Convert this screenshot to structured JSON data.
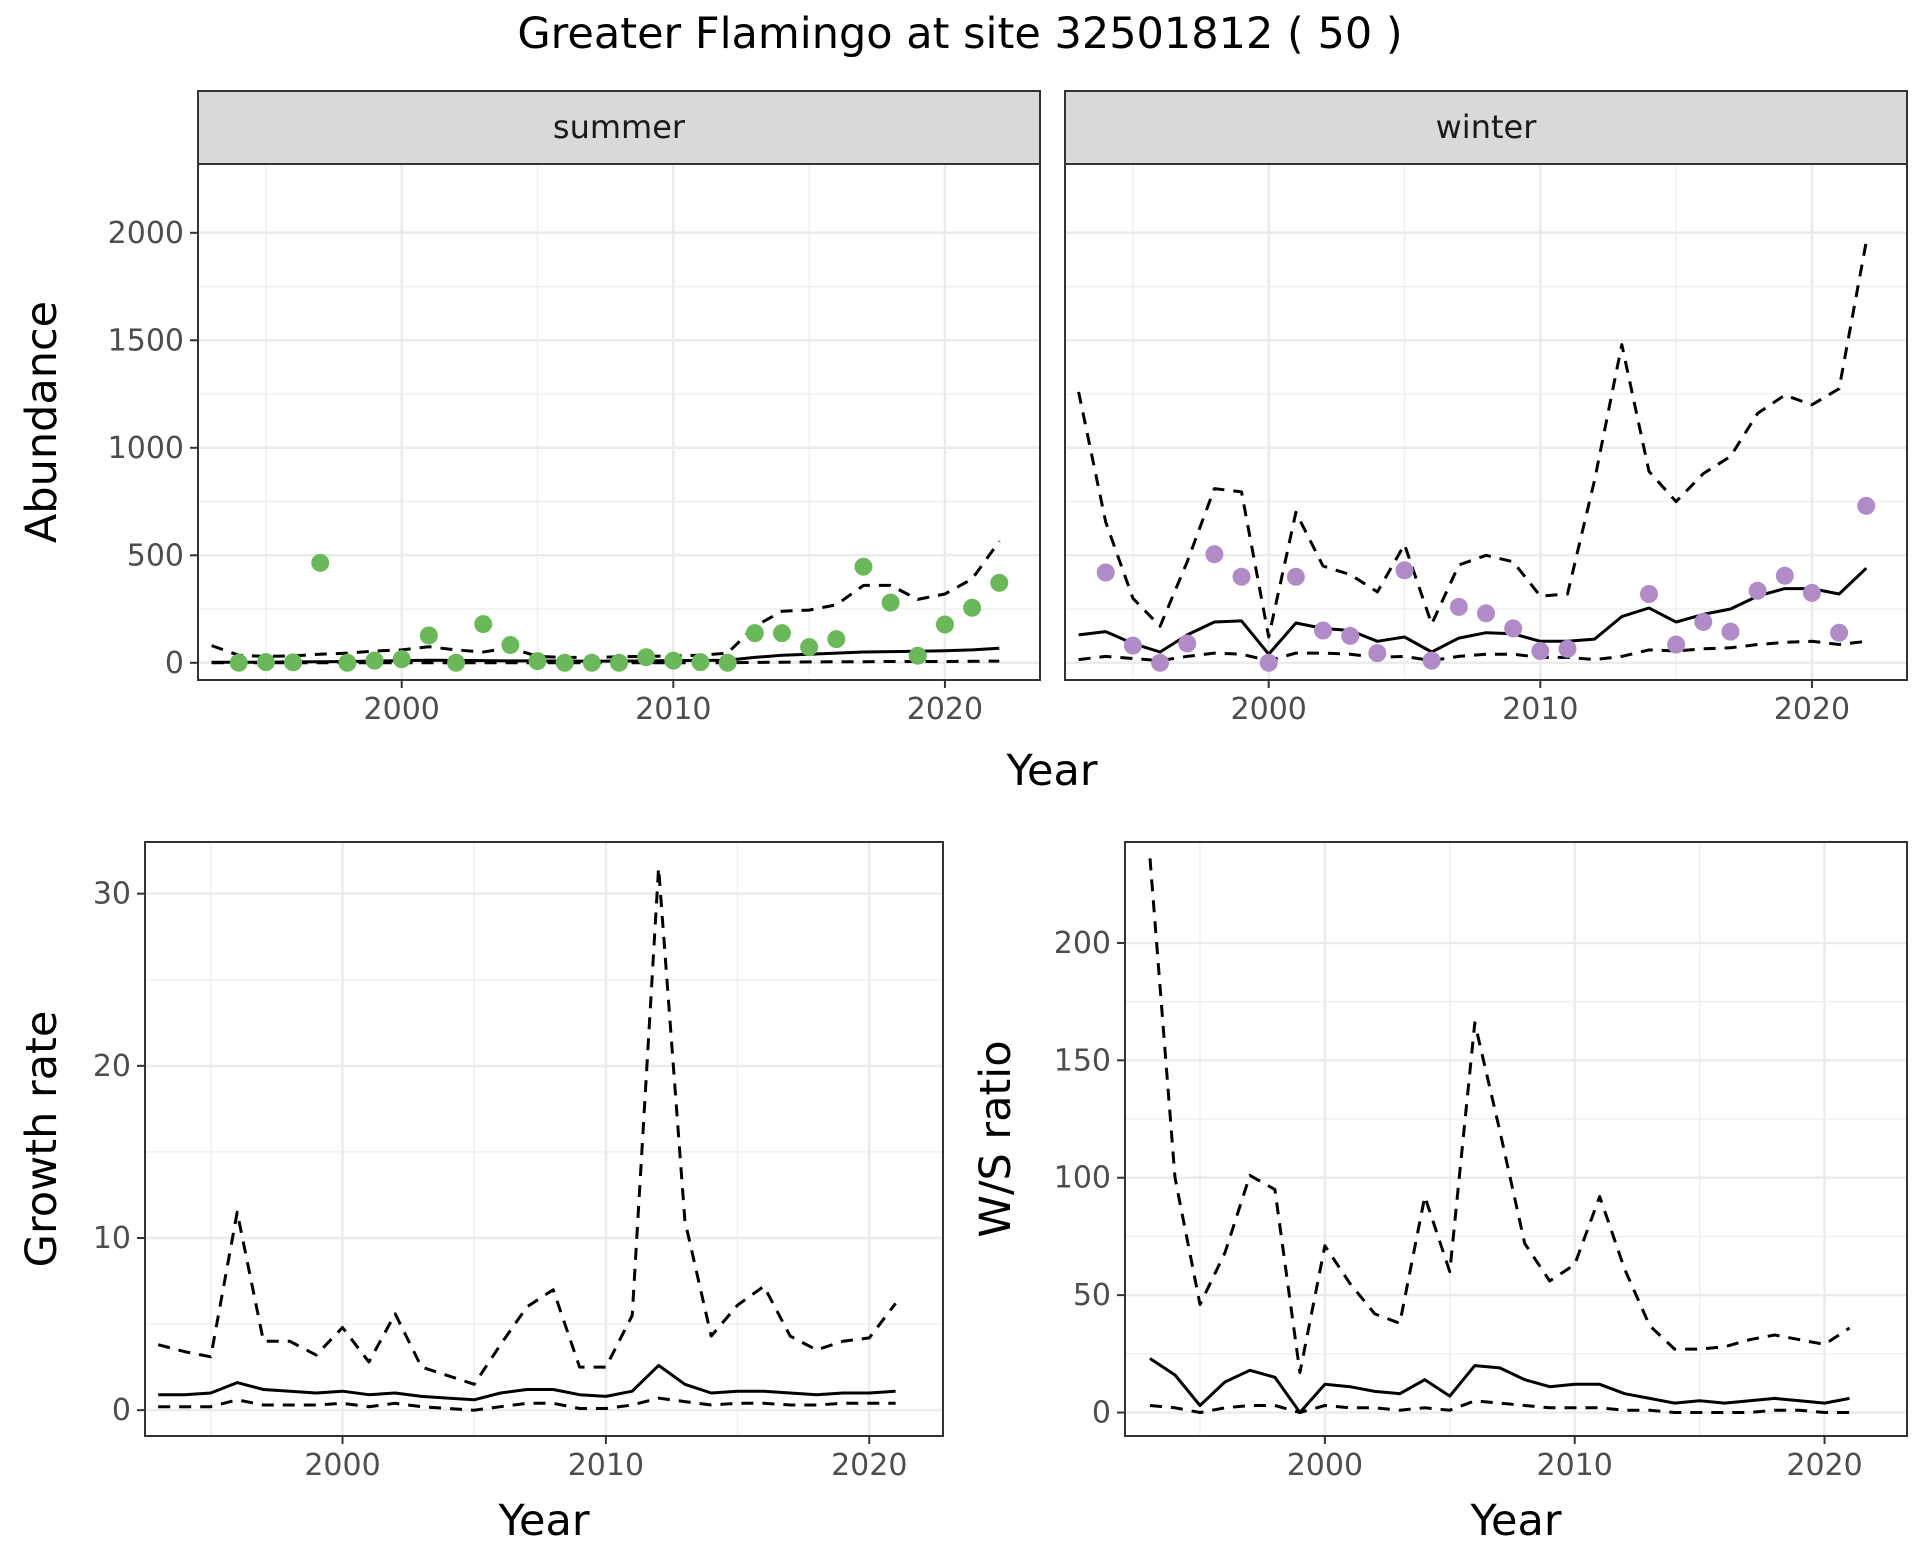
{
  "figure": {
    "title": "Greater Flamingo at site 32501812 ( 50 )"
  },
  "chart_data": [
    {
      "id": "abundance",
      "type": "line",
      "facets": [
        "summer",
        "winter"
      ],
      "xlabel": "Year",
      "ylabel": "Abundance",
      "xlim": [
        1992.5,
        2023.5
      ],
      "ylim": [
        -80,
        2320
      ],
      "xticks": [
        2000,
        2010,
        2020
      ],
      "yticks": [
        0,
        500,
        1000,
        1500,
        2000
      ],
      "grid": true,
      "legend": "none",
      "colors": {
        "summer_points": "#6ab85a",
        "winter_points": "#b08bc8",
        "lines": "#000000"
      },
      "panels": [
        {
          "facet": "summer",
          "observed": {
            "x": [
              1994,
              1995,
              1996,
              1997,
              1998,
              1999,
              2000,
              2001,
              2002,
              2003,
              2004,
              2005,
              2006,
              2007,
              2008,
              2009,
              2010,
              2011,
              2012,
              2013,
              2014,
              2015,
              2016,
              2017,
              2018,
              2019,
              2020,
              2021,
              2022
            ],
            "y": [
              0,
              3,
              2,
              465,
              0,
              10,
              17,
              127,
              0,
              180,
              83,
              8,
              0,
              0,
              0,
              26,
              10,
              3,
              0,
              138,
              138,
              73,
              110,
              447,
              280,
              33,
              178,
              256,
              372
            ]
          },
          "fitted": {
            "x": [
              1993,
              1994,
              1995,
              1996,
              1997,
              1998,
              1999,
              2000,
              2001,
              2002,
              2003,
              2004,
              2005,
              2006,
              2007,
              2008,
              2009,
              2010,
              2011,
              2012,
              2013,
              2014,
              2015,
              2016,
              2017,
              2018,
              2019,
              2020,
              2021,
              2022
            ],
            "y": [
              3,
              3,
              3,
              4,
              5,
              6,
              8,
              10,
              12,
              11,
              10,
              9,
              9,
              8,
              8,
              8,
              9,
              10,
              11,
              12,
              25,
              35,
              40,
              45,
              50,
              52,
              54,
              56,
              60,
              68
            ]
          },
          "lower": {
            "x": [
              1993,
              1994,
              1995,
              1996,
              1997,
              1998,
              1999,
              2000,
              2001,
              2002,
              2003,
              2004,
              2005,
              2006,
              2007,
              2008,
              2009,
              2010,
              2011,
              2012,
              2013,
              2014,
              2015,
              2016,
              2017,
              2018,
              2019,
              2020,
              2021,
              2022
            ],
            "y": [
              0,
              0,
              0,
              0,
              0,
              0,
              0,
              0,
              0,
              0,
              0,
              0,
              0,
              0,
              0,
              0,
              0,
              0,
              0,
              0,
              2,
              3,
              4,
              5,
              5,
              6,
              6,
              6,
              7,
              8
            ]
          },
          "upper": {
            "x": [
              1993,
              1994,
              1995,
              1996,
              1997,
              1998,
              1999,
              2000,
              2001,
              2002,
              2003,
              2004,
              2005,
              2006,
              2007,
              2008,
              2009,
              2010,
              2011,
              2012,
              2013,
              2014,
              2015,
              2016,
              2017,
              2018,
              2019,
              2020,
              2021,
              2022
            ],
            "y": [
              80,
              35,
              30,
              32,
              40,
              45,
              55,
              60,
              75,
              60,
              50,
              70,
              30,
              25,
              25,
              28,
              30,
              32,
              35,
              45,
              170,
              240,
              245,
              270,
              360,
              360,
              295,
              320,
              390,
              565
            ]
          }
        },
        {
          "facet": "winter",
          "observed": {
            "x": [
              1994,
              1995,
              1996,
              1997,
              1998,
              1999,
              2000,
              2001,
              2002,
              2003,
              2004,
              2005,
              2006,
              2007,
              2008,
              2009,
              2010,
              2011,
              2014,
              2015,
              2016,
              2017,
              2018,
              2019,
              2020,
              2021,
              2022
            ],
            "y": [
              420,
              80,
              0,
              90,
              505,
              400,
              0,
              400,
              150,
              125,
              45,
              430,
              10,
              260,
              230,
              160,
              55,
              65,
              320,
              85,
              190,
              145,
              335,
              405,
              325,
              140,
              730
            ]
          },
          "fitted": {
            "x": [
              1993,
              1994,
              1995,
              1996,
              1997,
              1998,
              1999,
              2000,
              2001,
              2002,
              2003,
              2004,
              2005,
              2006,
              2007,
              2008,
              2009,
              2010,
              2011,
              2012,
              2013,
              2014,
              2015,
              2016,
              2017,
              2018,
              2019,
              2020,
              2021,
              2022
            ],
            "y": [
              130,
              145,
              90,
              50,
              130,
              190,
              195,
              40,
              185,
              160,
              150,
              100,
              120,
              50,
              115,
              140,
              135,
              100,
              100,
              110,
              215,
              255,
              190,
              225,
              250,
              310,
              345,
              345,
              320,
              440
            ]
          },
          "lower": {
            "x": [
              1993,
              1994,
              1995,
              1996,
              1997,
              1998,
              1999,
              2000,
              2001,
              2002,
              2003,
              2004,
              2005,
              2006,
              2007,
              2008,
              2009,
              2010,
              2011,
              2012,
              2013,
              2014,
              2015,
              2016,
              2017,
              2018,
              2019,
              2020,
              2021,
              2022
            ],
            "y": [
              15,
              30,
              20,
              10,
              30,
              45,
              40,
              10,
              45,
              45,
              40,
              25,
              30,
              10,
              30,
              40,
              40,
              25,
              25,
              15,
              30,
              60,
              55,
              65,
              70,
              85,
              95,
              100,
              85,
              100
            ]
          },
          "upper": {
            "x": [
              1993,
              1994,
              1995,
              1996,
              1997,
              1998,
              1999,
              2000,
              2001,
              2002,
              2003,
              2004,
              2005,
              2006,
              2007,
              2008,
              2009,
              2010,
              2011,
              2012,
              2013,
              2014,
              2015,
              2016,
              2017,
              2018,
              2019,
              2020,
              2021,
              2022
            ],
            "y": [
              1260,
              655,
              300,
              170,
              470,
              810,
              795,
              120,
              700,
              450,
              410,
              330,
              550,
              180,
              455,
              500,
              470,
              310,
              320,
              850,
              1480,
              890,
              750,
              880,
              960,
              1160,
              1245,
              1200,
              1275,
              1960
            ]
          }
        }
      ]
    },
    {
      "id": "growth",
      "type": "line",
      "xlabel": "Year",
      "ylabel": "Growth rate",
      "xlim": [
        1992.5,
        2022.8
      ],
      "ylim": [
        -1.5,
        33
      ],
      "xticks": [
        2000,
        2010,
        2020
      ],
      "yticks": [
        0,
        10,
        20,
        30
      ],
      "grid": true,
      "legend": "none",
      "fitted": {
        "x": [
          1993,
          1994,
          1995,
          1996,
          1997,
          1998,
          1999,
          2000,
          2001,
          2002,
          2003,
          2004,
          2005,
          2006,
          2007,
          2008,
          2009,
          2010,
          2011,
          2012,
          2013,
          2014,
          2015,
          2016,
          2017,
          2018,
          2019,
          2020,
          2021
        ],
        "y": [
          0.9,
          0.9,
          1.0,
          1.6,
          1.2,
          1.1,
          1.0,
          1.1,
          0.9,
          1.0,
          0.8,
          0.7,
          0.6,
          1.0,
          1.2,
          1.2,
          0.9,
          0.8,
          1.1,
          2.6,
          1.5,
          1.0,
          1.1,
          1.1,
          1.0,
          0.9,
          1.0,
          1.0,
          1.1
        ]
      },
      "lower": {
        "x": [
          1993,
          1994,
          1995,
          1996,
          1997,
          1998,
          1999,
          2000,
          2001,
          2002,
          2003,
          2004,
          2005,
          2006,
          2007,
          2008,
          2009,
          2010,
          2011,
          2012,
          2013,
          2014,
          2015,
          2016,
          2017,
          2018,
          2019,
          2020,
          2021
        ],
        "y": [
          0.2,
          0.2,
          0.2,
          0.6,
          0.3,
          0.3,
          0.3,
          0.4,
          0.2,
          0.4,
          0.2,
          0.1,
          0.0,
          0.2,
          0.4,
          0.4,
          0.1,
          0.1,
          0.3,
          0.7,
          0.5,
          0.3,
          0.4,
          0.4,
          0.3,
          0.3,
          0.4,
          0.4,
          0.4
        ]
      },
      "upper": {
        "x": [
          1993,
          1994,
          1995,
          1996,
          1997,
          1998,
          1999,
          2000,
          2001,
          2002,
          2003,
          2004,
          2005,
          2006,
          2007,
          2008,
          2009,
          2010,
          2011,
          2012,
          2013,
          2014,
          2015,
          2016,
          2017,
          2018,
          2019,
          2020,
          2021
        ],
        "y": [
          3.8,
          3.4,
          3.1,
          11.5,
          4.0,
          4.0,
          3.2,
          4.8,
          2.8,
          5.6,
          2.5,
          2.0,
          1.5,
          3.8,
          6.0,
          7.0,
          2.5,
          2.5,
          5.5,
          31.5,
          11.0,
          4.3,
          6.1,
          7.2,
          4.3,
          3.5,
          4.0,
          4.2,
          6.2
        ]
      }
    },
    {
      "id": "ws_ratio",
      "type": "line",
      "xlabel": "Year",
      "ylabel": "W/S ratio",
      "xlim": [
        1992.0,
        2023.3
      ],
      "ylim": [
        -10,
        243
      ],
      "xticks": [
        2000,
        2010,
        2020
      ],
      "yticks": [
        0,
        50,
        100,
        150,
        200
      ],
      "grid": true,
      "legend": "none",
      "fitted": {
        "x": [
          1993,
          1994,
          1995,
          1996,
          1997,
          1998,
          1999,
          2000,
          2001,
          2002,
          2003,
          2004,
          2005,
          2006,
          2007,
          2008,
          2009,
          2010,
          2011,
          2012,
          2013,
          2014,
          2015,
          2016,
          2017,
          2018,
          2019,
          2020,
          2021
        ],
        "y": [
          23,
          16,
          3,
          13,
          18,
          15,
          0,
          12,
          11,
          9,
          8,
          14,
          7,
          20,
          19,
          14,
          11,
          12,
          12,
          8,
          6,
          4,
          5,
          4,
          5,
          6,
          5,
          4,
          6
        ]
      },
      "lower": {
        "x": [
          1993,
          1994,
          1995,
          1996,
          1997,
          1998,
          1999,
          2000,
          2001,
          2002,
          2003,
          2004,
          2005,
          2006,
          2007,
          2008,
          2009,
          2010,
          2011,
          2012,
          2013,
          2014,
          2015,
          2016,
          2017,
          2018,
          2019,
          2020,
          2021
        ],
        "y": [
          3,
          2,
          0,
          2,
          3,
          3,
          0,
          3,
          2,
          2,
          1,
          2,
          1,
          5,
          4,
          3,
          2,
          2,
          2,
          1,
          1,
          0,
          0,
          0,
          0,
          1,
          1,
          0,
          0
        ]
      },
      "upper": {
        "x": [
          1993,
          1994,
          1995,
          1996,
          1997,
          1998,
          1999,
          2000,
          2001,
          2002,
          2003,
          2004,
          2005,
          2006,
          2007,
          2008,
          2009,
          2010,
          2011,
          2012,
          2013,
          2014,
          2015,
          2016,
          2017,
          2018,
          2019,
          2020,
          2021
        ],
        "y": [
          236,
          100,
          46,
          68,
          101,
          95,
          17,
          71,
          55,
          42,
          38,
          92,
          60,
          166,
          120,
          72,
          56,
          63,
          92,
          61,
          37,
          27,
          27,
          28,
          31,
          33,
          31,
          29,
          36
        ]
      }
    }
  ]
}
